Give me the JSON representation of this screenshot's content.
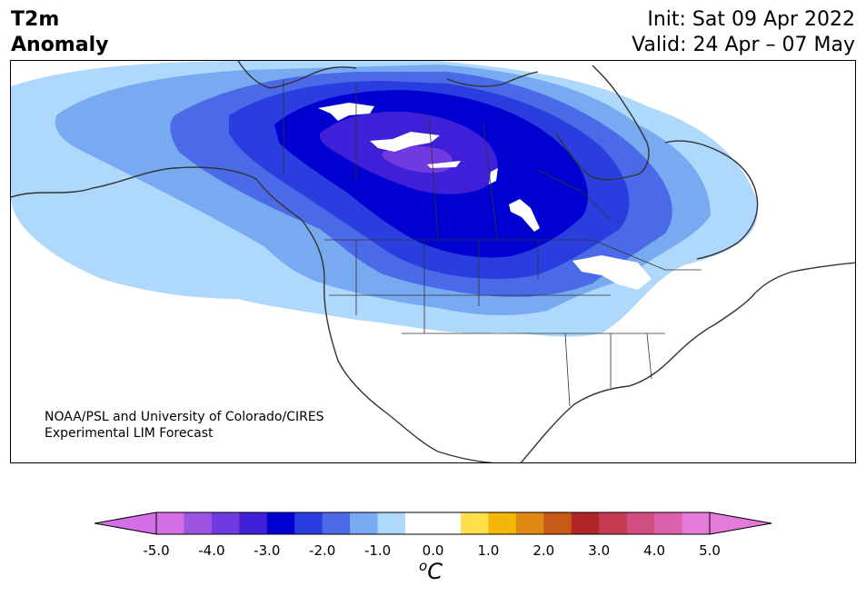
{
  "title": {
    "line1": "T2m",
    "line2": "Anomaly"
  },
  "header_right": {
    "init": "Init: Sat 09 Apr 2022",
    "valid": "Valid: 24 Apr – 07 May"
  },
  "credit": {
    "line1": "NOAA/PSL and University of Colorado/CIRES",
    "line2": "Experimental LIM Forecast"
  },
  "colorbar": {
    "unit_base": "C",
    "unit_super": "o",
    "extend": "both",
    "ticks": [
      "-5.0",
      "-4.0",
      "-3.0",
      "-2.0",
      "-1.0",
      "0.0",
      "1.0",
      "2.0",
      "3.0",
      "4.0",
      "5.0"
    ],
    "colors": [
      "#d46fe6",
      "#9b55e0",
      "#6f3be0",
      "#3f1fd8",
      "#0000d0",
      "#2a3ee0",
      "#4a6ae8",
      "#78aaf2",
      "#aed8fc",
      "#ffffff",
      "#ffffff",
      "#fde04a",
      "#f2b707",
      "#de8a10",
      "#c85a18",
      "#b02626",
      "#c43a50",
      "#d04f80",
      "#dd62ad",
      "#e67ad8"
    ],
    "min_color": "#d46fe6",
    "max_color": "#e67ad8"
  },
  "map": {
    "anomaly_colors": {
      "level_-1": "#aed8fc",
      "level_-1.5": "#78aaf2",
      "level_-2": "#4a6ae8",
      "level_-2.5": "#2a3ee0",
      "level_-3": "#0000d0",
      "level_-3.5": "#3f1fd8",
      "level_-4": "#6f3be0"
    },
    "land_color": "#ffffff",
    "coast_color": "#333333"
  }
}
